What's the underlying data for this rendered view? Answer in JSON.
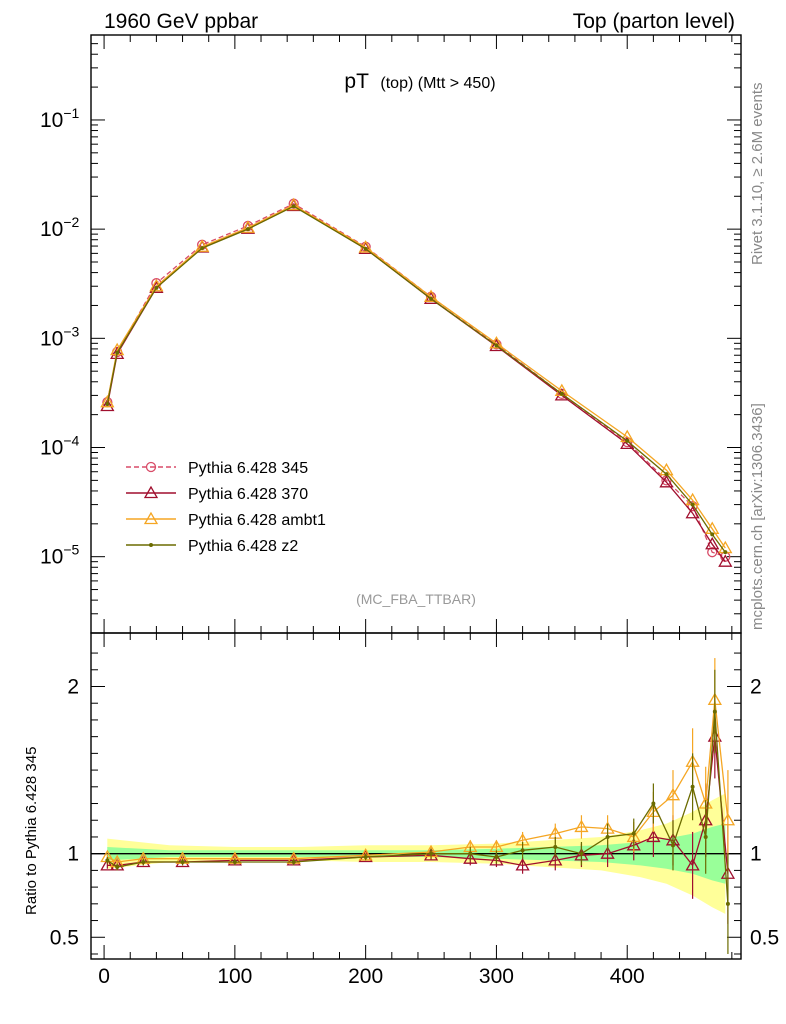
{
  "header": {
    "left": "1960 GeV ppbar",
    "right": "Top (parton level)"
  },
  "side_labels": {
    "rivet": "Rivet 3.1.10, ≥ 2.6M events",
    "mcplots": "mcplots.cern.ch [arXiv:1306.3436]"
  },
  "analysis_label": "(MC_FBA_TTBAR)",
  "title": {
    "main": "pT",
    "sub": "(top) (Mtt > 450)"
  },
  "ratio_ylabel": "Ratio to Pythia 6.428 345",
  "chart_data": [
    {
      "type": "line",
      "panel": "main",
      "yscale": "log",
      "xlim": [
        -10,
        487
      ],
      "ylim": [
        2e-06,
        0.6
      ],
      "yticks": [
        0.1,
        0.01,
        0.001,
        0.0001,
        1e-05
      ],
      "ytick_labels": [
        {
          "base": "10",
          "exp": "−1"
        },
        {
          "base": "10",
          "exp": "−2"
        },
        {
          "base": "10",
          "exp": "−3"
        },
        {
          "base": "10",
          "exp": "−4"
        },
        {
          "base": "10",
          "exp": "−5"
        }
      ],
      "legend": {
        "placement": "lower-left"
      },
      "series": [
        {
          "name": "Pythia 6.428 345",
          "color": "#d84c68",
          "marker": "circle-open",
          "dash": "dashed",
          "x": [
            2.5,
            10,
            40,
            75,
            110,
            145,
            200,
            250,
            300,
            350,
            400,
            430,
            450,
            465,
            475
          ],
          "y": [
            0.00026,
            0.00075,
            0.0032,
            0.0072,
            0.0107,
            0.0171,
            0.0069,
            0.0024,
            0.00088,
            0.00031,
            0.000112,
            5e-05,
            2.9e-05,
            1.1e-05,
            1e-05
          ]
        },
        {
          "name": "Pythia 6.428 370",
          "color": "#a00f2e",
          "marker": "triangle-open",
          "dash": "solid",
          "x": [
            2.5,
            10,
            40,
            75,
            110,
            145,
            200,
            250,
            300,
            350,
            400,
            430,
            450,
            465,
            475
          ],
          "y": [
            0.00024,
            0.00072,
            0.0029,
            0.0068,
            0.0101,
            0.0163,
            0.0066,
            0.0023,
            0.00085,
            0.0003,
            0.000108,
            4.8e-05,
            2.5e-05,
            1.3e-05,
            9e-06
          ]
        },
        {
          "name": "Pythia 6.428 ambt1",
          "color": "#f5a623",
          "marker": "triangle-open",
          "dash": "solid",
          "x": [
            2.5,
            10,
            40,
            75,
            110,
            145,
            200,
            250,
            300,
            350,
            400,
            430,
            450,
            465,
            475
          ],
          "y": [
            0.00026,
            0.00078,
            0.003,
            0.0069,
            0.0103,
            0.0166,
            0.0068,
            0.0024,
            0.0009,
            0.00033,
            0.000125,
            6.2e-05,
            3.3e-05,
            1.8e-05,
            1.2e-05
          ]
        },
        {
          "name": "Pythia 6.428 z2",
          "color": "#6b6b00",
          "marker": "dot",
          "dash": "solid",
          "x": [
            2.5,
            10,
            40,
            75,
            110,
            145,
            200,
            250,
            300,
            350,
            400,
            430,
            450,
            465,
            475
          ],
          "y": [
            0.00025,
            0.00074,
            0.0029,
            0.0067,
            0.01,
            0.0162,
            0.0066,
            0.0023,
            0.00086,
            0.00031,
            0.000115,
            5.7e-05,
            3e-05,
            1.6e-05,
            1.1e-05
          ]
        }
      ]
    },
    {
      "type": "line",
      "panel": "ratio",
      "xlim": [
        -10,
        487
      ],
      "ylim": [
        0.37,
        2.32
      ],
      "yticks": [
        0.5,
        1,
        2
      ],
      "ytick_labels": [
        "0.5",
        "1",
        "2"
      ],
      "xticks": [
        0,
        100,
        200,
        300,
        400
      ],
      "xtick_labels": [
        "0",
        "100",
        "200",
        "300",
        "400"
      ],
      "reference": 1,
      "bands": {
        "x": [
          2.5,
          50,
          100,
          150,
          200,
          250,
          300,
          340,
          380,
          410,
          430,
          450,
          465,
          475
        ],
        "yellow_half": [
          0.09,
          0.05,
          0.04,
          0.04,
          0.05,
          0.05,
          0.06,
          0.08,
          0.1,
          0.14,
          0.18,
          0.25,
          0.32,
          0.36
        ],
        "green_half": [
          0.04,
          0.02,
          0.02,
          0.02,
          0.02,
          0.02,
          0.03,
          0.04,
          0.05,
          0.07,
          0.09,
          0.12,
          0.16,
          0.18
        ]
      },
      "series": [
        {
          "name": "Pythia 6.428 370",
          "x": [
            2.5,
            10,
            30,
            60,
            100,
            145,
            200,
            250,
            280,
            300,
            320,
            345,
            365,
            385,
            405,
            420,
            435,
            450,
            460,
            467,
            477
          ],
          "y": [
            0.93,
            0.93,
            0.95,
            0.95,
            0.96,
            0.96,
            0.98,
            0.99,
            0.97,
            0.96,
            0.93,
            0.96,
            0.99,
            1.0,
            1.05,
            1.1,
            1.08,
            0.93,
            1.2,
            1.7,
            0.88
          ],
          "err": [
            0.02,
            0.02,
            0.02,
            0.02,
            0.02,
            0.02,
            0.02,
            0.03,
            0.04,
            0.04,
            0.05,
            0.06,
            0.07,
            0.08,
            0.09,
            0.12,
            0.15,
            0.2,
            0.22,
            0.25,
            0.3
          ]
        },
        {
          "name": "Pythia 6.428 ambt1",
          "x": [
            2.5,
            10,
            30,
            60,
            100,
            145,
            200,
            250,
            280,
            300,
            320,
            345,
            365,
            385,
            405,
            420,
            435,
            450,
            460,
            467,
            477
          ],
          "y": [
            0.98,
            0.95,
            0.97,
            0.97,
            0.97,
            0.97,
            0.99,
            1.01,
            1.04,
            1.04,
            1.08,
            1.12,
            1.16,
            1.15,
            1.1,
            1.25,
            1.35,
            1.55,
            1.3,
            1.92,
            1.2
          ],
          "err": [
            0.02,
            0.02,
            0.02,
            0.02,
            0.02,
            0.02,
            0.02,
            0.03,
            0.04,
            0.04,
            0.05,
            0.06,
            0.07,
            0.08,
            0.09,
            0.12,
            0.15,
            0.2,
            0.22,
            0.25,
            0.3
          ]
        },
        {
          "name": "Pythia 6.428 z2",
          "x": [
            2.5,
            10,
            30,
            60,
            100,
            145,
            200,
            250,
            280,
            300,
            320,
            345,
            365,
            385,
            405,
            420,
            435,
            450,
            460,
            467,
            477
          ],
          "y": [
            0.96,
            0.92,
            0.95,
            0.95,
            0.95,
            0.95,
            0.98,
            1.0,
            1.0,
            0.98,
            1.02,
            1.04,
            1.0,
            1.1,
            1.12,
            1.3,
            1.05,
            1.4,
            1.1,
            1.85,
            0.7
          ],
          "err": [
            0.02,
            0.02,
            0.02,
            0.02,
            0.02,
            0.02,
            0.02,
            0.03,
            0.04,
            0.04,
            0.05,
            0.06,
            0.07,
            0.08,
            0.09,
            0.12,
            0.15,
            0.2,
            0.22,
            0.25,
            0.3
          ]
        }
      ]
    }
  ]
}
